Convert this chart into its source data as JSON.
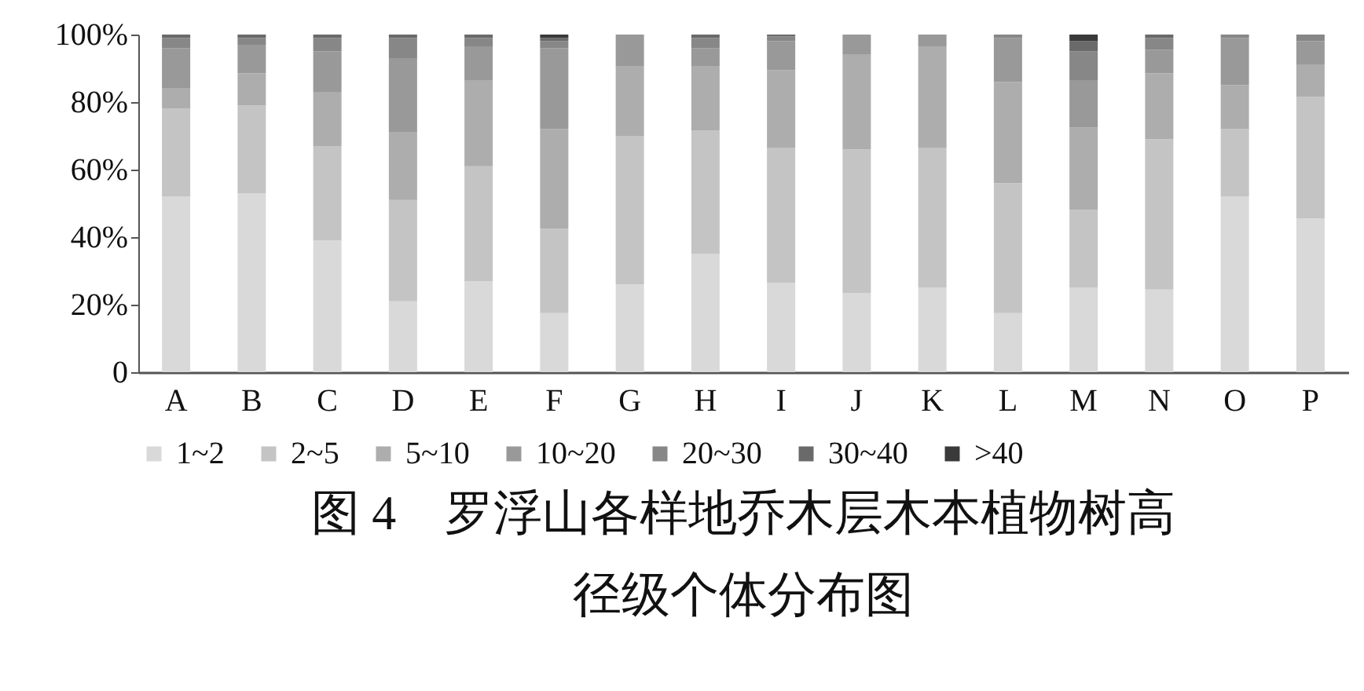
{
  "chart_data": {
    "type": "bar",
    "stacked": true,
    "title": "图 4　罗浮山各样地乔木层木本植物树高径级个体分布图",
    "categories": [
      "A",
      "B",
      "C",
      "D",
      "E",
      "F",
      "G",
      "H",
      "I",
      "J",
      "K",
      "L",
      "M",
      "N",
      "O",
      "P"
    ],
    "series": [
      {
        "name": "1~2",
        "color": "#d9d9d9",
        "values": [
          52,
          53,
          39,
          21,
          27,
          17.5,
          26,
          35,
          26.5,
          23.5,
          25,
          17.5,
          25,
          24.5,
          52,
          45.5
        ]
      },
      {
        "name": "2~5",
        "color": "#c4c4c4",
        "values": [
          26,
          26,
          28,
          30,
          34,
          25,
          44,
          36.5,
          40,
          42.5,
          41.5,
          38.5,
          23,
          44.5,
          20,
          36
        ]
      },
      {
        "name": "5~10",
        "color": "#adadad",
        "values": [
          6,
          9.5,
          16,
          20,
          25.5,
          29.5,
          20.5,
          19,
          23,
          28,
          30,
          30,
          24.5,
          19.5,
          13,
          9.5
        ]
      },
      {
        "name": "10~20",
        "color": "#999999",
        "values": [
          12,
          8.5,
          12,
          22,
          10,
          24,
          9.5,
          5.5,
          8.5,
          6,
          3.5,
          13,
          14,
          7,
          14,
          7
        ]
      },
      {
        "name": "20~30",
        "color": "#878787",
        "values": [
          3,
          2,
          4,
          6,
          2.5,
          2,
          0,
          3,
          1.5,
          0,
          0,
          1,
          8.5,
          3.5,
          1,
          2
        ]
      },
      {
        "name": "30~40",
        "color": "#6a6a6a",
        "values": [
          1,
          1,
          1,
          1,
          1,
          1,
          0,
          1,
          0.5,
          0,
          0,
          0,
          3,
          1,
          0,
          0
        ]
      },
      {
        "name": ">40",
        "color": "#3a3a3a",
        "values": [
          0,
          0,
          0,
          0,
          0,
          1,
          0,
          0,
          0,
          0,
          0,
          0,
          2,
          0,
          0,
          0
        ]
      }
    ],
    "ylim": [
      0,
      100
    ],
    "yticks": [
      0,
      {
        "value": 20,
        "label": "20%"
      },
      {
        "value": 40,
        "label": "40%"
      },
      {
        "value": 60,
        "label": "60%"
      },
      {
        "value": 80,
        "label": "80%"
      },
      {
        "value": 100,
        "label": "100%"
      }
    ],
    "grid": false,
    "legend": "bottom"
  }
}
